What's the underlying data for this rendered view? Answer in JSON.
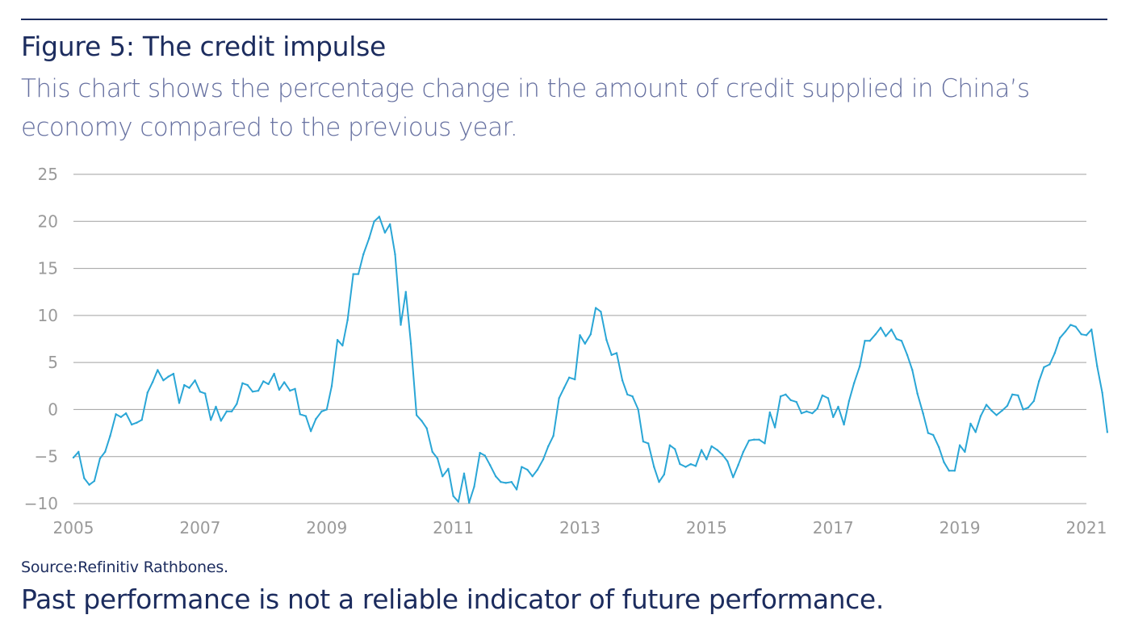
{
  "header": {
    "title": "Figure 5: The credit impulse",
    "subtitle": "This chart shows the percentage change in the amount of credit supplied in China’s economy compared to the previous year."
  },
  "footer": {
    "source": "Source:Refinitiv Rathbones.",
    "disclaimer": "Past performance is not a reliable indicator of future performance."
  },
  "colors": {
    "title": "#1c2c5e",
    "subtitle": "#6670a0",
    "line": "#2aa6d6",
    "grid": "#a0a0a0",
    "tick_label": "#9a9a9a"
  },
  "chart_data": {
    "type": "line",
    "title": "Figure 5: The credit impulse",
    "xlabel": "",
    "ylabel": "",
    "xlim": [
      2005,
      2021
    ],
    "ylim": [
      -10,
      25
    ],
    "x_ticks": [
      "2005",
      "2007",
      "2009",
      "2011",
      "2013",
      "2015",
      "2017",
      "2019",
      "2021"
    ],
    "y_ticks": [
      "25",
      "20",
      "15",
      "10",
      "5",
      "0",
      "−5",
      "−10"
    ],
    "grid": "horizontal",
    "legend": "none",
    "series": [
      {
        "values": [
          {
            "x": 2005.0,
            "y": -5.1
          },
          {
            "x": 2005.08,
            "y": -4.5
          },
          {
            "x": 2005.17,
            "y": -7.3
          },
          {
            "x": 2005.25,
            "y": -8.0
          },
          {
            "x": 2005.33,
            "y": -7.6
          },
          {
            "x": 2005.42,
            "y": -5.2
          },
          {
            "x": 2005.5,
            "y": -4.5
          },
          {
            "x": 2005.58,
            "y": -2.8
          },
          {
            "x": 2005.67,
            "y": -0.5
          },
          {
            "x": 2005.75,
            "y": -0.8
          },
          {
            "x": 2005.83,
            "y": -0.4
          },
          {
            "x": 2005.92,
            "y": -1.6
          },
          {
            "x": 2006.0,
            "y": -1.4
          },
          {
            "x": 2006.08,
            "y": -1.1
          },
          {
            "x": 2006.17,
            "y": 1.8
          },
          {
            "x": 2006.25,
            "y": 2.9
          },
          {
            "x": 2006.33,
            "y": 4.2
          },
          {
            "x": 2006.42,
            "y": 3.1
          },
          {
            "x": 2006.5,
            "y": 3.5
          },
          {
            "x": 2006.58,
            "y": 3.8
          },
          {
            "x": 2006.67,
            "y": 0.7
          },
          {
            "x": 2006.75,
            "y": 2.6
          },
          {
            "x": 2006.83,
            "y": 2.3
          },
          {
            "x": 2006.92,
            "y": 3.1
          },
          {
            "x": 2007.0,
            "y": 1.9
          },
          {
            "x": 2007.08,
            "y": 1.7
          },
          {
            "x": 2007.17,
            "y": -1.1
          },
          {
            "x": 2007.25,
            "y": 0.3
          },
          {
            "x": 2007.33,
            "y": -1.2
          },
          {
            "x": 2007.42,
            "y": -0.2
          },
          {
            "x": 2007.5,
            "y": -0.2
          },
          {
            "x": 2007.58,
            "y": 0.6
          },
          {
            "x": 2007.67,
            "y": 2.8
          },
          {
            "x": 2007.75,
            "y": 2.6
          },
          {
            "x": 2007.83,
            "y": 1.9
          },
          {
            "x": 2007.92,
            "y": 2.0
          },
          {
            "x": 2008.0,
            "y": 3.0
          },
          {
            "x": 2008.08,
            "y": 2.7
          },
          {
            "x": 2008.17,
            "y": 3.8
          },
          {
            "x": 2008.25,
            "y": 2.1
          },
          {
            "x": 2008.33,
            "y": 2.9
          },
          {
            "x": 2008.42,
            "y": 2.0
          },
          {
            "x": 2008.5,
            "y": 2.2
          },
          {
            "x": 2008.58,
            "y": -0.5
          },
          {
            "x": 2008.67,
            "y": -0.7
          },
          {
            "x": 2008.75,
            "y": -2.3
          },
          {
            "x": 2008.83,
            "y": -1.0
          },
          {
            "x": 2008.92,
            "y": -0.2
          },
          {
            "x": 2009.0,
            "y": 0.0
          },
          {
            "x": 2009.08,
            "y": 2.5
          },
          {
            "x": 2009.17,
            "y": 7.4
          },
          {
            "x": 2009.25,
            "y": 6.8
          },
          {
            "x": 2009.33,
            "y": 9.5
          },
          {
            "x": 2009.42,
            "y": 14.4
          },
          {
            "x": 2009.5,
            "y": 14.4
          },
          {
            "x": 2009.58,
            "y": 16.5
          },
          {
            "x": 2009.67,
            "y": 18.2
          },
          {
            "x": 2009.75,
            "y": 20.0
          },
          {
            "x": 2009.83,
            "y": 20.5
          },
          {
            "x": 2009.92,
            "y": 18.8
          },
          {
            "x": 2010.0,
            "y": 19.7
          },
          {
            "x": 2010.08,
            "y": 16.5
          },
          {
            "x": 2010.17,
            "y": 9.0
          },
          {
            "x": 2010.25,
            "y": 12.5
          },
          {
            "x": 2010.33,
            "y": 7.0
          },
          {
            "x": 2010.42,
            "y": -0.6
          },
          {
            "x": 2010.5,
            "y": -1.2
          },
          {
            "x": 2010.58,
            "y": -2.0
          },
          {
            "x": 2010.67,
            "y": -4.5
          },
          {
            "x": 2010.75,
            "y": -5.2
          },
          {
            "x": 2010.83,
            "y": -7.1
          },
          {
            "x": 2010.92,
            "y": -6.3
          },
          {
            "x": 2011.0,
            "y": -9.2
          },
          {
            "x": 2011.08,
            "y": -9.8
          },
          {
            "x": 2011.17,
            "y": -6.8
          },
          {
            "x": 2011.25,
            "y": -9.9
          },
          {
            "x": 2011.33,
            "y": -8.2
          },
          {
            "x": 2011.42,
            "y": -4.6
          },
          {
            "x": 2011.5,
            "y": -4.9
          },
          {
            "x": 2011.58,
            "y": -5.9
          },
          {
            "x": 2011.67,
            "y": -7.1
          },
          {
            "x": 2011.75,
            "y": -7.7
          },
          {
            "x": 2011.83,
            "y": -7.8
          },
          {
            "x": 2011.92,
            "y": -7.7
          },
          {
            "x": 2012.0,
            "y": -8.5
          },
          {
            "x": 2012.08,
            "y": -6.1
          },
          {
            "x": 2012.17,
            "y": -6.4
          },
          {
            "x": 2012.25,
            "y": -7.1
          },
          {
            "x": 2012.33,
            "y": -6.4
          },
          {
            "x": 2012.42,
            "y": -5.3
          },
          {
            "x": 2012.5,
            "y": -3.9
          },
          {
            "x": 2012.58,
            "y": -2.8
          },
          {
            "x": 2012.67,
            "y": 1.2
          },
          {
            "x": 2012.75,
            "y": 2.3
          },
          {
            "x": 2012.83,
            "y": 3.4
          },
          {
            "x": 2012.92,
            "y": 3.2
          },
          {
            "x": 2013.0,
            "y": 7.9
          },
          {
            "x": 2013.08,
            "y": 7.0
          },
          {
            "x": 2013.17,
            "y": 8.0
          },
          {
            "x": 2013.25,
            "y": 10.8
          },
          {
            "x": 2013.33,
            "y": 10.4
          },
          {
            "x": 2013.42,
            "y": 7.4
          },
          {
            "x": 2013.5,
            "y": 5.8
          },
          {
            "x": 2013.58,
            "y": 6.0
          },
          {
            "x": 2013.67,
            "y": 3.1
          },
          {
            "x": 2013.75,
            "y": 1.6
          },
          {
            "x": 2013.83,
            "y": 1.4
          },
          {
            "x": 2013.92,
            "y": 0.0
          },
          {
            "x": 2014.0,
            "y": -3.4
          },
          {
            "x": 2014.08,
            "y": -3.6
          },
          {
            "x": 2014.17,
            "y": -6.1
          },
          {
            "x": 2014.25,
            "y": -7.7
          },
          {
            "x": 2014.33,
            "y": -6.9
          },
          {
            "x": 2014.42,
            "y": -3.8
          },
          {
            "x": 2014.5,
            "y": -4.2
          },
          {
            "x": 2014.58,
            "y": -5.8
          },
          {
            "x": 2014.67,
            "y": -6.1
          },
          {
            "x": 2014.75,
            "y": -5.8
          },
          {
            "x": 2014.83,
            "y": -6.0
          },
          {
            "x": 2014.92,
            "y": -4.3
          },
          {
            "x": 2015.0,
            "y": -5.3
          },
          {
            "x": 2015.08,
            "y": -3.9
          },
          {
            "x": 2015.17,
            "y": -4.3
          },
          {
            "x": 2015.25,
            "y": -4.8
          },
          {
            "x": 2015.33,
            "y": -5.5
          },
          {
            "x": 2015.42,
            "y": -7.2
          },
          {
            "x": 2015.5,
            "y": -5.9
          },
          {
            "x": 2015.58,
            "y": -4.5
          },
          {
            "x": 2015.67,
            "y": -3.3
          },
          {
            "x": 2015.75,
            "y": -3.2
          },
          {
            "x": 2015.83,
            "y": -3.2
          },
          {
            "x": 2015.92,
            "y": -3.6
          },
          {
            "x": 2016.0,
            "y": -0.3
          },
          {
            "x": 2016.08,
            "y": -1.9
          },
          {
            "x": 2016.17,
            "y": 1.4
          },
          {
            "x": 2016.25,
            "y": 1.6
          },
          {
            "x": 2016.33,
            "y": 1.0
          },
          {
            "x": 2016.42,
            "y": 0.8
          },
          {
            "x": 2016.5,
            "y": -0.4
          },
          {
            "x": 2016.58,
            "y": -0.2
          },
          {
            "x": 2016.67,
            "y": -0.4
          },
          {
            "x": 2016.75,
            "y": 0.1
          },
          {
            "x": 2016.83,
            "y": 1.5
          },
          {
            "x": 2016.92,
            "y": 1.2
          },
          {
            "x": 2017.0,
            "y": -0.8
          },
          {
            "x": 2017.08,
            "y": 0.3
          },
          {
            "x": 2017.17,
            "y": -1.6
          },
          {
            "x": 2017.25,
            "y": 0.9
          },
          {
            "x": 2017.33,
            "y": 2.8
          },
          {
            "x": 2017.42,
            "y": 4.6
          },
          {
            "x": 2017.5,
            "y": 7.3
          },
          {
            "x": 2017.58,
            "y": 7.3
          },
          {
            "x": 2017.67,
            "y": 8.0
          },
          {
            "x": 2017.75,
            "y": 8.7
          },
          {
            "x": 2017.83,
            "y": 7.8
          },
          {
            "x": 2017.92,
            "y": 8.5
          },
          {
            "x": 2018.0,
            "y": 7.5
          },
          {
            "x": 2018.08,
            "y": 7.3
          },
          {
            "x": 2018.17,
            "y": 5.8
          },
          {
            "x": 2018.25,
            "y": 4.2
          },
          {
            "x": 2018.33,
            "y": 1.7
          },
          {
            "x": 2018.42,
            "y": -0.4
          },
          {
            "x": 2018.5,
            "y": -2.5
          },
          {
            "x": 2018.58,
            "y": -2.7
          },
          {
            "x": 2018.67,
            "y": -4.0
          },
          {
            "x": 2018.75,
            "y": -5.6
          },
          {
            "x": 2018.83,
            "y": -6.5
          },
          {
            "x": 2018.92,
            "y": -6.5
          },
          {
            "x": 2019.0,
            "y": -3.8
          },
          {
            "x": 2019.08,
            "y": -4.5
          },
          {
            "x": 2019.17,
            "y": -1.5
          },
          {
            "x": 2019.25,
            "y": -2.4
          },
          {
            "x": 2019.33,
            "y": -0.7
          },
          {
            "x": 2019.42,
            "y": 0.5
          },
          {
            "x": 2019.5,
            "y": -0.1
          },
          {
            "x": 2019.58,
            "y": -0.6
          },
          {
            "x": 2019.67,
            "y": -0.1
          },
          {
            "x": 2019.75,
            "y": 0.4
          },
          {
            "x": 2019.83,
            "y": 1.6
          },
          {
            "x": 2019.92,
            "y": 1.5
          },
          {
            "x": 2020.0,
            "y": 0.0
          },
          {
            "x": 2020.08,
            "y": 0.2
          },
          {
            "x": 2020.17,
            "y": 0.9
          },
          {
            "x": 2020.25,
            "y": 3.0
          },
          {
            "x": 2020.33,
            "y": 4.5
          },
          {
            "x": 2020.42,
            "y": 4.8
          },
          {
            "x": 2020.5,
            "y": 6.0
          },
          {
            "x": 2020.58,
            "y": 7.6
          },
          {
            "x": 2020.67,
            "y": 8.3
          },
          {
            "x": 2020.75,
            "y": 9.0
          },
          {
            "x": 2020.83,
            "y": 8.8
          },
          {
            "x": 2020.92,
            "y": 8.0
          },
          {
            "x": 2021.0,
            "y": 7.9
          },
          {
            "x": 2021.08,
            "y": 8.5
          },
          {
            "x": 2021.17,
            "y": 4.6
          },
          {
            "x": 2021.25,
            "y": 1.8
          },
          {
            "x": 2021.33,
            "y": -2.4
          }
        ]
      }
    ]
  }
}
